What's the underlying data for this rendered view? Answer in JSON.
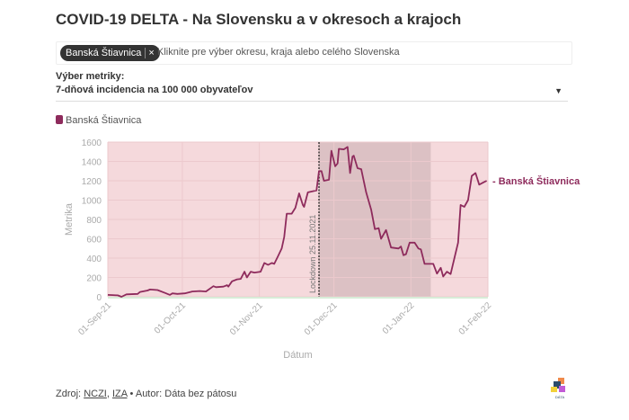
{
  "title": "COVID-19 DELTA - Na Slovensku a v okresoch a krajoch",
  "selector": {
    "chip": "Banská Štiavnica",
    "chip_remove": "×",
    "placeholder": "Kliknite pre výber okresu, kraja alebo celého Slovenska"
  },
  "metric": {
    "label": "Výber metriky:",
    "value": "7-dňová incidencia na 100 000 obyvateľov",
    "caret": "▼"
  },
  "footer": {
    "prefix": "Zdroj: ",
    "src1": "NCZI",
    "sep": ", ",
    "src2": "IZA",
    "author": " • Autor: Dáta bez pátosu"
  },
  "logo": {
    "text": "DÁTA"
  },
  "colors": {
    "line": "#8e2b5c",
    "bg": "#f5d9dc",
    "shade": "#dcc1c4"
  },
  "chart_data": {
    "type": "line",
    "title": "",
    "xlabel": "Dátum",
    "ylabel": "Metrika",
    "x_start": "2021-09-01",
    "x_unit": "days since x_start",
    "xlim": [
      0,
      153
    ],
    "ylim": [
      0,
      1600
    ],
    "yticks": [
      0,
      200,
      400,
      600,
      800,
      1000,
      1200,
      1400,
      1600
    ],
    "xticks": [
      {
        "day": 0,
        "label": "01-Sep-21"
      },
      {
        "day": 30,
        "label": "01-Oct-21"
      },
      {
        "day": 61,
        "label": "01-Nov-21"
      },
      {
        "day": 91,
        "label": "01-Dec-21"
      },
      {
        "day": 122,
        "label": "01-Jan-22"
      },
      {
        "day": 153,
        "label": "01-Feb-22"
      }
    ],
    "annotation": {
      "day": 85,
      "label": "Lockdown 25.11.2021"
    },
    "shaded_range": [
      85,
      130
    ],
    "series": [
      {
        "name": "Banská Štiavnica",
        "x": [
          0,
          4,
          5.5,
          7.5,
          12,
          13,
          16,
          17,
          20,
          23,
          25,
          26,
          28,
          31,
          34,
          37,
          39.5,
          42.5,
          43.5,
          46.5,
          48,
          48.5,
          50,
          52,
          53.5,
          55,
          56,
          57.5,
          59,
          61.5,
          63,
          64.5,
          66,
          67,
          68.5,
          70,
          71,
          72,
          74,
          75.5,
          77,
          78.5,
          79,
          80.5,
          84,
          85,
          86,
          87,
          89,
          90,
          91.5,
          92.5,
          93,
          95,
          96.5,
          97.5,
          98.5,
          99,
          100.5,
          102,
          104,
          106,
          107.5,
          109,
          110,
          112,
          114,
          117,
          118,
          119,
          120,
          121.5,
          123.5,
          125,
          126,
          127.5,
          130,
          131,
          132.5,
          134,
          135,
          136.5,
          138,
          139.5,
          141,
          142,
          143.5,
          145,
          146.5,
          148,
          149.5,
          151,
          152.5
        ],
        "y": [
          20,
          15,
          0,
          25,
          30,
          50,
          65,
          75,
          70,
          40,
          20,
          35,
          30,
          35,
          55,
          60,
          55,
          110,
          100,
          105,
          120,
          105,
          160,
          180,
          185,
          260,
          200,
          260,
          250,
          260,
          350,
          330,
          350,
          340,
          420,
          500,
          620,
          860,
          860,
          920,
          1070,
          950,
          930,
          1080,
          1100,
          1300,
          1300,
          1200,
          1210,
          1510,
          1350,
          1380,
          1530,
          1525,
          1550,
          1280,
          1450,
          1460,
          1330,
          1320,
          1080,
          900,
          700,
          710,
          600,
          690,
          510,
          500,
          520,
          430,
          440,
          560,
          560,
          500,
          490,
          340,
          340,
          340,
          240,
          300,
          210,
          260,
          235,
          400,
          560,
          950,
          930,
          1000,
          1250,
          1280,
          1160,
          1180,
          1200
        ]
      }
    ],
    "legend": "top-left"
  }
}
